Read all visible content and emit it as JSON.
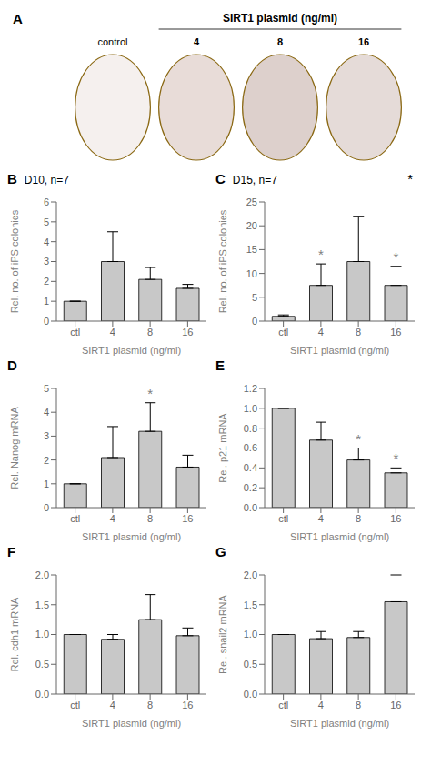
{
  "chart_data": [
    {
      "type": "illustration",
      "title": "A",
      "subtitle": "SIRT1 plasmid (ng/ml)",
      "categories": [
        "control",
        "4",
        "8",
        "16"
      ],
      "colors": [
        "#f5f0ee",
        "#e8dcd8",
        "#ddd0cc",
        "#e5dbd8"
      ]
    },
    {
      "type": "bar",
      "title": "B",
      "subtitle": "D10, n=7",
      "ylabel": "Rel. no. of iPS colonies",
      "xlabel": "SIRT1 plasmid (ng/ml)",
      "categories": [
        "ctl",
        "4",
        "8",
        "16"
      ],
      "values": [
        1.0,
        3.0,
        2.1,
        1.65
      ],
      "errors": [
        0.0,
        1.5,
        0.6,
        0.2
      ],
      "color": "#c8c8c8",
      "ylim": [
        0,
        6
      ],
      "yticks": [
        0,
        1,
        2,
        3,
        4,
        5,
        6
      ],
      "grid": false
    },
    {
      "type": "bar",
      "title": "C",
      "subtitle": "D15, n=7",
      "ylabel": "Rel. no. of iPS colonies",
      "xlabel": "SIRT1 plasmid (ng/ml)",
      "categories": [
        "ctl",
        "4",
        "8",
        "16"
      ],
      "values": [
        1.0,
        7.5,
        12.5,
        7.5
      ],
      "errors": [
        0.3,
        4.5,
        9.5,
        4.0
      ],
      "color": "#c8c8c8",
      "ylim": [
        0,
        25
      ],
      "yticks": [
        0,
        5,
        10,
        15,
        20,
        25
      ],
      "grid": false,
      "annotations": [
        {
          "text": "*",
          "category": "4"
        },
        {
          "text": "*",
          "category": "16"
        },
        {
          "text": "*"
        }
      ]
    },
    {
      "type": "bar",
      "title": "D",
      "ylabel": "Rel. Nanog mRNA",
      "xlabel": "SIRT1 plasmid (ng/ml)",
      "categories": [
        "ctl",
        "4",
        "8",
        "16"
      ],
      "values": [
        1.0,
        2.1,
        3.2,
        1.7
      ],
      "errors": [
        0.0,
        1.3,
        1.2,
        0.5
      ],
      "color": "#c8c8c8",
      "ylim": [
        0,
        5
      ],
      "yticks": [
        0,
        1,
        2,
        3,
        4,
        5
      ],
      "grid": false,
      "annotations": [
        {
          "text": "*",
          "category": "8"
        }
      ]
    },
    {
      "type": "bar",
      "title": "E",
      "ylabel": "Rel. p21 mRNA",
      "xlabel": "SIRT1 plasmid (ng/ml)",
      "categories": [
        "ctl",
        "4",
        "8",
        "16"
      ],
      "values": [
        1.0,
        0.68,
        0.48,
        0.35
      ],
      "errors": [
        0.0,
        0.18,
        0.12,
        0.05
      ],
      "color": "#c8c8c8",
      "ylim": [
        0,
        1.2
      ],
      "yticks": [
        {
          "value": 0,
          "label": "0.0"
        },
        0.2,
        0.4,
        0.6,
        0.8,
        {
          "value": 1,
          "label": "1.0"
        },
        1.2
      ],
      "grid": false,
      "annotations": [
        {
          "text": "*",
          "category": "8"
        },
        {
          "text": "*",
          "category": "16"
        }
      ]
    },
    {
      "type": "bar",
      "title": "F",
      "ylabel": "Rel. cdh1 mRNA",
      "xlabel": "SIRT1 plasmid (ng/ml)",
      "categories": [
        "ctl",
        "4",
        "8",
        "16"
      ],
      "values": [
        1.0,
        0.92,
        1.25,
        0.98
      ],
      "errors": [
        0.0,
        0.08,
        0.42,
        0.13
      ],
      "color": "#c8c8c8",
      "ylim": [
        0,
        2
      ],
      "yticks": [
        {
          "value": 0,
          "label": "0.0"
        },
        0.5,
        {
          "value": 1,
          "label": "1.0"
        },
        1.5,
        {
          "value": 2,
          "label": "2.0"
        }
      ],
      "grid": false
    },
    {
      "type": "bar",
      "title": "G",
      "ylabel": "Rel. snail2 mRNA",
      "xlabel": "SIRT1 plasmid (ng/ml)",
      "categories": [
        "ctl",
        "4",
        "8",
        "16"
      ],
      "values": [
        1.0,
        0.93,
        0.95,
        1.55
      ],
      "errors": [
        0.0,
        0.12,
        0.1,
        0.45
      ],
      "color": "#c8c8c8",
      "ylim": [
        0,
        2
      ],
      "yticks": [
        {
          "value": 0,
          "label": "0.0"
        },
        0.5,
        {
          "value": 1,
          "label": "1.0"
        },
        1.5,
        {
          "value": 2,
          "label": "2.0"
        }
      ],
      "grid": false
    }
  ]
}
